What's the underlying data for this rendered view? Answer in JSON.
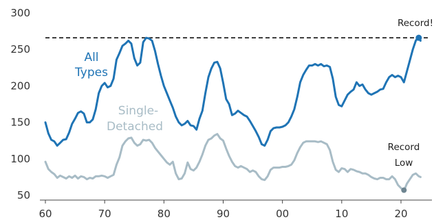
{
  "chart_data": {
    "type": "line",
    "xlim": [
      1960,
      2024
    ],
    "ylim": [
      50,
      300
    ],
    "x_ticks": [
      {
        "value": 1960,
        "label": "60"
      },
      {
        "value": 1970,
        "label": "70"
      },
      {
        "value": 1980,
        "label": "80"
      },
      {
        "value": 1990,
        "label": "90"
      },
      {
        "value": 2000,
        "label": "00"
      },
      {
        "value": 2010,
        "label": "10"
      },
      {
        "value": 2020,
        "label": "20"
      }
    ],
    "y_ticks": [
      50,
      100,
      150,
      200,
      250,
      300
    ],
    "grid": false,
    "reference_line": {
      "value": 266,
      "style": "dashed",
      "color": "#111111"
    },
    "series": [
      {
        "name": "All Types",
        "color": "#1f74b5",
        "points": [
          [
            1960.0,
            150
          ],
          [
            1960.5,
            135
          ],
          [
            1961.0,
            126
          ],
          [
            1961.5,
            124
          ],
          [
            1962.0,
            118
          ],
          [
            1962.5,
            122
          ],
          [
            1963.0,
            126
          ],
          [
            1963.5,
            127
          ],
          [
            1964.0,
            136
          ],
          [
            1964.5,
            148
          ],
          [
            1965.0,
            155
          ],
          [
            1965.5,
            163
          ],
          [
            1966.0,
            165
          ],
          [
            1966.5,
            162
          ],
          [
            1967.0,
            150
          ],
          [
            1967.5,
            150
          ],
          [
            1968.0,
            154
          ],
          [
            1968.5,
            168
          ],
          [
            1969.0,
            190
          ],
          [
            1969.5,
            200
          ],
          [
            1970.0,
            204
          ],
          [
            1970.5,
            198
          ],
          [
            1971.0,
            200
          ],
          [
            1971.5,
            210
          ],
          [
            1972.0,
            236
          ],
          [
            1972.5,
            245
          ],
          [
            1973.0,
            255
          ],
          [
            1973.5,
            258
          ],
          [
            1974.0,
            262
          ],
          [
            1974.5,
            258
          ],
          [
            1975.0,
            238
          ],
          [
            1975.5,
            228
          ],
          [
            1976.0,
            232
          ],
          [
            1976.5,
            260
          ],
          [
            1977.0,
            266
          ],
          [
            1977.5,
            265
          ],
          [
            1978.0,
            262
          ],
          [
            1978.5,
            248
          ],
          [
            1979.0,
            230
          ],
          [
            1979.5,
            214
          ],
          [
            1980.0,
            200
          ],
          [
            1980.5,
            190
          ],
          [
            1981.0,
            180
          ],
          [
            1981.5,
            170
          ],
          [
            1982.0,
            158
          ],
          [
            1982.5,
            150
          ],
          [
            1983.0,
            146
          ],
          [
            1983.5,
            148
          ],
          [
            1984.0,
            152
          ],
          [
            1984.5,
            146
          ],
          [
            1985.0,
            145
          ],
          [
            1985.5,
            140
          ],
          [
            1986.0,
            155
          ],
          [
            1986.5,
            166
          ],
          [
            1987.0,
            190
          ],
          [
            1987.5,
            212
          ],
          [
            1988.0,
            224
          ],
          [
            1988.5,
            232
          ],
          [
            1989.0,
            233
          ],
          [
            1989.5,
            224
          ],
          [
            1990.0,
            204
          ],
          [
            1990.5,
            182
          ],
          [
            1991.0,
            175
          ],
          [
            1991.5,
            160
          ],
          [
            1992.0,
            162
          ],
          [
            1992.5,
            166
          ],
          [
            1993.0,
            163
          ],
          [
            1993.5,
            160
          ],
          [
            1994.0,
            158
          ],
          [
            1994.5,
            152
          ],
          [
            1995.0,
            145
          ],
          [
            1995.5,
            138
          ],
          [
            1996.0,
            130
          ],
          [
            1996.5,
            120
          ],
          [
            1997.0,
            118
          ],
          [
            1997.5,
            126
          ],
          [
            1998.0,
            138
          ],
          [
            1998.5,
            142
          ],
          [
            1999.0,
            143
          ],
          [
            1999.5,
            143
          ],
          [
            2000.0,
            144
          ],
          [
            2000.5,
            146
          ],
          [
            2001.0,
            150
          ],
          [
            2001.5,
            158
          ],
          [
            2002.0,
            168
          ],
          [
            2002.5,
            185
          ],
          [
            2003.0,
            205
          ],
          [
            2003.5,
            215
          ],
          [
            2004.0,
            222
          ],
          [
            2004.5,
            228
          ],
          [
            2005.0,
            228
          ],
          [
            2005.5,
            230
          ],
          [
            2006.0,
            228
          ],
          [
            2006.5,
            230
          ],
          [
            2007.0,
            227
          ],
          [
            2007.5,
            228
          ],
          [
            2008.0,
            226
          ],
          [
            2008.5,
            210
          ],
          [
            2009.0,
            185
          ],
          [
            2009.5,
            174
          ],
          [
            2010.0,
            172
          ],
          [
            2010.5,
            180
          ],
          [
            2011.0,
            188
          ],
          [
            2011.5,
            192
          ],
          [
            2012.0,
            195
          ],
          [
            2012.5,
            205
          ],
          [
            2013.0,
            200
          ],
          [
            2013.5,
            202
          ],
          [
            2014.0,
            195
          ],
          [
            2014.5,
            190
          ],
          [
            2015.0,
            188
          ],
          [
            2015.5,
            190
          ],
          [
            2016.0,
            192
          ],
          [
            2016.5,
            195
          ],
          [
            2017.0,
            196
          ],
          [
            2017.5,
            205
          ],
          [
            2018.0,
            212
          ],
          [
            2018.5,
            215
          ],
          [
            2019.0,
            212
          ],
          [
            2019.5,
            214
          ],
          [
            2020.0,
            212
          ],
          [
            2020.5,
            205
          ],
          [
            2021.0,
            220
          ],
          [
            2021.5,
            235
          ],
          [
            2022.0,
            250
          ],
          [
            2022.5,
            262
          ],
          [
            2023.0,
            268
          ],
          [
            2023.3,
            262
          ]
        ]
      },
      {
        "name": "Single-Detached",
        "color": "#a8bcc6",
        "points": [
          [
            1960.0,
            96
          ],
          [
            1960.5,
            86
          ],
          [
            1961.0,
            82
          ],
          [
            1961.5,
            79
          ],
          [
            1962.0,
            74
          ],
          [
            1962.5,
            77
          ],
          [
            1963.0,
            75
          ],
          [
            1963.5,
            73
          ],
          [
            1964.0,
            76
          ],
          [
            1964.5,
            74
          ],
          [
            1965.0,
            77
          ],
          [
            1965.5,
            73
          ],
          [
            1966.0,
            76
          ],
          [
            1966.5,
            75
          ],
          [
            1967.0,
            72
          ],
          [
            1967.5,
            74
          ],
          [
            1968.0,
            73
          ],
          [
            1968.5,
            76
          ],
          [
            1969.0,
            76
          ],
          [
            1969.5,
            77
          ],
          [
            1970.0,
            76
          ],
          [
            1970.5,
            74
          ],
          [
            1971.0,
            76
          ],
          [
            1971.5,
            78
          ],
          [
            1972.0,
            92
          ],
          [
            1972.5,
            102
          ],
          [
            1973.0,
            118
          ],
          [
            1973.5,
            124
          ],
          [
            1974.0,
            128
          ],
          [
            1974.5,
            129
          ],
          [
            1975.0,
            122
          ],
          [
            1975.5,
            118
          ],
          [
            1976.0,
            120
          ],
          [
            1976.5,
            126
          ],
          [
            1977.0,
            125
          ],
          [
            1977.5,
            126
          ],
          [
            1978.0,
            122
          ],
          [
            1978.5,
            115
          ],
          [
            1979.0,
            110
          ],
          [
            1979.5,
            105
          ],
          [
            1980.0,
            100
          ],
          [
            1980.5,
            95
          ],
          [
            1981.0,
            92
          ],
          [
            1981.5,
            96
          ],
          [
            1982.0,
            80
          ],
          [
            1982.5,
            72
          ],
          [
            1983.0,
            73
          ],
          [
            1983.5,
            80
          ],
          [
            1984.0,
            95
          ],
          [
            1984.5,
            86
          ],
          [
            1985.0,
            84
          ],
          [
            1985.5,
            88
          ],
          [
            1986.0,
            96
          ],
          [
            1986.5,
            106
          ],
          [
            1987.0,
            118
          ],
          [
            1987.5,
            126
          ],
          [
            1988.0,
            128
          ],
          [
            1988.5,
            132
          ],
          [
            1989.0,
            134
          ],
          [
            1989.5,
            128
          ],
          [
            1990.0,
            125
          ],
          [
            1990.5,
            114
          ],
          [
            1991.0,
            104
          ],
          [
            1991.5,
            96
          ],
          [
            1992.0,
            90
          ],
          [
            1992.5,
            88
          ],
          [
            1993.0,
            90
          ],
          [
            1993.5,
            88
          ],
          [
            1994.0,
            86
          ],
          [
            1994.5,
            82
          ],
          [
            1995.0,
            84
          ],
          [
            1995.5,
            82
          ],
          [
            1996.0,
            76
          ],
          [
            1996.5,
            72
          ],
          [
            1997.0,
            71
          ],
          [
            1997.5,
            76
          ],
          [
            1998.0,
            85
          ],
          [
            1998.5,
            88
          ],
          [
            1999.0,
            88
          ],
          [
            1999.5,
            88
          ],
          [
            2000.0,
            89
          ],
          [
            2000.5,
            89
          ],
          [
            2001.0,
            90
          ],
          [
            2001.5,
            92
          ],
          [
            2002.0,
            98
          ],
          [
            2002.5,
            108
          ],
          [
            2003.0,
            116
          ],
          [
            2003.5,
            122
          ],
          [
            2004.0,
            124
          ],
          [
            2004.5,
            124
          ],
          [
            2005.0,
            124
          ],
          [
            2005.5,
            124
          ],
          [
            2006.0,
            123
          ],
          [
            2006.5,
            124
          ],
          [
            2007.0,
            122
          ],
          [
            2007.5,
            120
          ],
          [
            2008.0,
            112
          ],
          [
            2008.5,
            96
          ],
          [
            2009.0,
            85
          ],
          [
            2009.5,
            82
          ],
          [
            2010.0,
            87
          ],
          [
            2010.5,
            86
          ],
          [
            2011.0,
            82
          ],
          [
            2011.5,
            86
          ],
          [
            2012.0,
            85
          ],
          [
            2012.5,
            83
          ],
          [
            2013.0,
            82
          ],
          [
            2013.5,
            80
          ],
          [
            2014.0,
            80
          ],
          [
            2014.5,
            78
          ],
          [
            2015.0,
            75
          ],
          [
            2015.5,
            73
          ],
          [
            2016.0,
            72
          ],
          [
            2016.5,
            74
          ],
          [
            2017.0,
            74
          ],
          [
            2017.5,
            72
          ],
          [
            2018.0,
            72
          ],
          [
            2018.5,
            76
          ],
          [
            2019.0,
            72
          ],
          [
            2019.5,
            64
          ],
          [
            2020.0,
            60
          ],
          [
            2020.5,
            56
          ],
          [
            2021.0,
            66
          ],
          [
            2021.5,
            72
          ],
          [
            2022.0,
            78
          ],
          [
            2022.5,
            80
          ],
          [
            2023.0,
            76
          ],
          [
            2023.3,
            75
          ]
        ]
      }
    ],
    "annotations": {
      "all_types_label": [
        "All",
        "Types"
      ],
      "single_detached_label": [
        "Single-",
        "Detached"
      ],
      "record_high": {
        "text": "Record!",
        "x": 2023,
        "y": 266
      },
      "record_low": {
        "lines": [
          "Record",
          "Low"
        ],
        "x": 2020.5,
        "y": 57
      }
    }
  }
}
